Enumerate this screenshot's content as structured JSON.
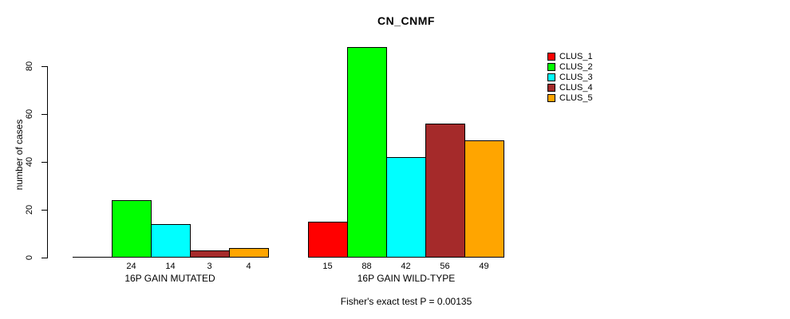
{
  "chart_data": {
    "type": "bar",
    "title": "CN_CNMF",
    "ylabel": "number of cases",
    "yticks": [
      0,
      20,
      40,
      60,
      80
    ],
    "ylim": [
      0,
      89
    ],
    "grid": false,
    "legend_position": "right",
    "series": [
      {
        "name": "CLUS_1",
        "color": "#FF0000"
      },
      {
        "name": "CLUS_2",
        "color": "#00FF00"
      },
      {
        "name": "CLUS_3",
        "color": "#00FFFF"
      },
      {
        "name": "CLUS_4",
        "color": "#A52A2A"
      },
      {
        "name": "CLUS_5",
        "color": "#FFA500"
      }
    ],
    "groups": [
      {
        "label": "16P GAIN MUTATED",
        "values": [
          0,
          24,
          14,
          3,
          4
        ],
        "value_labels": [
          "",
          "24",
          "14",
          "3",
          "4"
        ]
      },
      {
        "label": "16P GAIN WILD-TYPE",
        "values": [
          15,
          88,
          42,
          56,
          49
        ],
        "value_labels": [
          "15",
          "88",
          "42",
          "56",
          "49"
        ]
      }
    ],
    "caption": "Fisher's exact test P = 0.00135"
  }
}
